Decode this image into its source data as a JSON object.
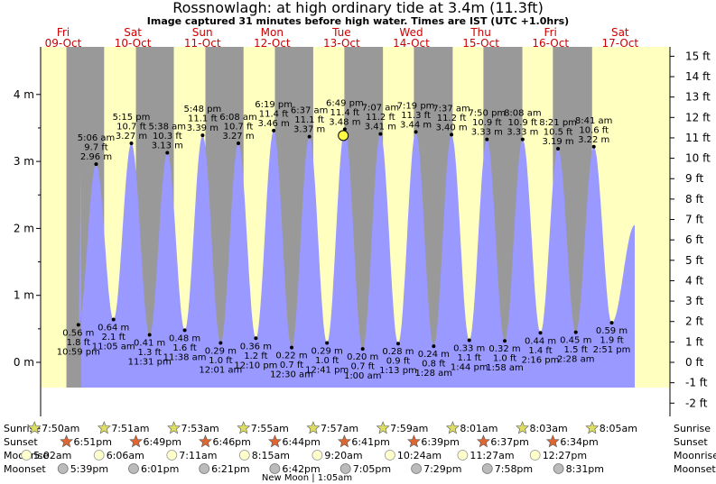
{
  "title": "Rossnowlagh: at high  ordinary tide at 3.4m (11.3ft)",
  "subtitle": "Image captured 31 minutes before high water. Times are IST (UTC +1.0hrs)",
  "days": [
    {
      "day": "Fri",
      "date": "09-Oct"
    },
    {
      "day": "Sat",
      "date": "10-Oct"
    },
    {
      "day": "Sun",
      "date": "11-Oct"
    },
    {
      "day": "Mon",
      "date": "12-Oct"
    },
    {
      "day": "Tue",
      "date": "13-Oct"
    },
    {
      "day": "Wed",
      "date": "14-Oct"
    },
    {
      "day": "Thu",
      "date": "15-Oct"
    },
    {
      "day": "Fri",
      "date": "16-Oct"
    },
    {
      "day": "Sat",
      "date": "17-Oct"
    }
  ],
  "row_labels": {
    "sunrise": "Sunrise",
    "sunset": "Sunset",
    "moonrise": "Moonrise",
    "moonset": "Moonset"
  },
  "sunrise": [
    "7:50am",
    "7:51am",
    "7:53am",
    "7:55am",
    "7:57am",
    "7:59am",
    "8:01am",
    "8:03am",
    "8:05am"
  ],
  "sunset": [
    "6:51pm",
    "6:49pm",
    "6:46pm",
    "6:44pm",
    "6:41pm",
    "6:39pm",
    "6:37pm",
    "6:34pm"
  ],
  "moonrise": [
    "5:02am",
    "6:06am",
    "7:11am",
    "8:15am",
    "9:20am",
    "10:24am",
    "11:27am",
    "12:27pm"
  ],
  "moonset": [
    "5:39pm",
    "6:01pm",
    "6:21pm",
    "6:42pm",
    "7:05pm",
    "7:29pm",
    "7:58pm",
    "8:31pm"
  ],
  "moon_phase_note": "New Moon | 1:05am",
  "colors": {
    "day": "#ffffc0",
    "night": "#999999",
    "tide": "#9999ff",
    "sunset_red": "#cc0000",
    "marker": "#ffff44"
  },
  "chart_data": {
    "type": "area",
    "title": "Rossnowlagh: at high  ordinary tide at 3.4m (11.3ft)",
    "x_unit": "time (IST)",
    "y_left": {
      "label": "m",
      "ticks": [
        "0 m",
        "1 m",
        "2 m",
        "3 m",
        "4 m"
      ],
      "range": [
        -0.45,
        4.6
      ]
    },
    "y_right": {
      "label": "ft",
      "ticks": [
        "-2 ft",
        "-1 ft",
        "0 ft",
        "1 ft",
        "2 ft",
        "3 ft",
        "4 ft",
        "5 ft",
        "6 ft",
        "7 ft",
        "8 ft",
        "9 ft",
        "10 ft",
        "11 ft",
        "12 ft",
        "13 ft",
        "14 ft",
        "15 ft"
      ]
    },
    "grid": false,
    "current_marker": {
      "time": "13-Oct 6:18pm",
      "height_m": 3.4
    },
    "tides": [
      {
        "type": "low",
        "date": "09-Oct",
        "time": "10:59pm",
        "m": 0.56,
        "ft": 1.8,
        "labels": [
          "0.56 m",
          "1.8 ft",
          "10:59 pm"
        ]
      },
      {
        "type": "high",
        "date": "10-Oct",
        "time": "5:06am",
        "m": 2.96,
        "ft": 9.7,
        "labels": [
          "5:06 am",
          "9.7 ft",
          "2.96 m"
        ]
      },
      {
        "type": "low",
        "date": "10-Oct",
        "time": "11:05am",
        "m": 0.64,
        "ft": 2.1,
        "labels": [
          "0.64 m",
          "2.1 ft",
          "11:05 am"
        ]
      },
      {
        "type": "high",
        "date": "10-Oct",
        "time": "5:15pm",
        "m": 3.27,
        "ft": 10.7,
        "labels": [
          "5:15 pm",
          "10.7 ft",
          "3.27 m"
        ]
      },
      {
        "type": "low",
        "date": "10-Oct",
        "time": "11:31pm",
        "m": 0.41,
        "ft": 1.3,
        "labels": [
          "0.41 m",
          "1.3 ft",
          "11:31 pm"
        ]
      },
      {
        "type": "high",
        "date": "11-Oct",
        "time": "5:38am",
        "m": 3.13,
        "ft": 10.3,
        "labels": [
          "5:38 am",
          "10.3 ft",
          "3.13 m"
        ]
      },
      {
        "type": "low",
        "date": "11-Oct",
        "time": "11:38am",
        "m": 0.48,
        "ft": 1.6,
        "labels": [
          "0.48 m",
          "1.6 ft",
          "11:38 am"
        ]
      },
      {
        "type": "high",
        "date": "11-Oct",
        "time": "5:48pm",
        "m": 3.39,
        "ft": 11.1,
        "labels": [
          "5:48 pm",
          "11.1 ft",
          "3.39 m"
        ]
      },
      {
        "type": "low",
        "date": "12-Oct",
        "time": "12:01am",
        "m": 0.29,
        "ft": 1.0,
        "labels": [
          "0.29 m",
          "1.0 ft",
          "12:01 am"
        ]
      },
      {
        "type": "high",
        "date": "12-Oct",
        "time": "6:08am",
        "m": 3.27,
        "ft": 10.7,
        "labels": [
          "6:08 am",
          "10.7 ft",
          "3.27 m"
        ]
      },
      {
        "type": "low",
        "date": "12-Oct",
        "time": "12:10pm",
        "m": 0.36,
        "ft": 1.2,
        "labels": [
          "0.36 m",
          "1.2 ft",
          "12:10 pm"
        ]
      },
      {
        "type": "high",
        "date": "12-Oct",
        "time": "6:19pm",
        "m": 3.46,
        "ft": 11.4,
        "labels": [
          "6:19 pm",
          "11.4 ft",
          "3.46 m"
        ]
      },
      {
        "type": "low",
        "date": "13-Oct",
        "time": "12:30am",
        "m": 0.22,
        "ft": 0.7,
        "labels": [
          "0.22 m",
          "0.7 ft",
          "12:30 am"
        ]
      },
      {
        "type": "high",
        "date": "13-Oct",
        "time": "6:37am",
        "m": 3.37,
        "ft": 11.1,
        "labels": [
          "6:37 am",
          "11.1 ft",
          "3.37 m"
        ]
      },
      {
        "type": "low",
        "date": "13-Oct",
        "time": "12:41pm",
        "m": 0.29,
        "ft": 1.0,
        "labels": [
          "0.29 m",
          "1.0 ft",
          "12:41 pm"
        ]
      },
      {
        "type": "high",
        "date": "13-Oct",
        "time": "6:49pm",
        "m": 3.48,
        "ft": 11.4,
        "labels": [
          "6:49 pm",
          "11.4 ft",
          "3.48 m"
        ]
      },
      {
        "type": "low",
        "date": "14-Oct",
        "time": "1:00am",
        "m": 0.2,
        "ft": 0.7,
        "labels": [
          "0.20 m",
          "0.7 ft",
          "1:00 am"
        ]
      },
      {
        "type": "high",
        "date": "14-Oct",
        "time": "7:07am",
        "m": 3.41,
        "ft": 11.2,
        "labels": [
          "7:07 am",
          "11.2 ft",
          "3.41 m"
        ]
      },
      {
        "type": "low",
        "date": "14-Oct",
        "time": "1:13pm",
        "m": 0.28,
        "ft": 0.9,
        "labels": [
          "0.28 m",
          "0.9 ft",
          "1:13 pm"
        ]
      },
      {
        "type": "high",
        "date": "14-Oct",
        "time": "7:19pm",
        "m": 3.44,
        "ft": 11.3,
        "labels": [
          "7:19 pm",
          "11.3 ft",
          "3.44 m"
        ]
      },
      {
        "type": "low",
        "date": "15-Oct",
        "time": "1:28am",
        "m": 0.24,
        "ft": 0.8,
        "labels": [
          "0.24 m",
          "0.8 ft",
          "1:28 am"
        ]
      },
      {
        "type": "high",
        "date": "15-Oct",
        "time": "7:37am",
        "m": 3.4,
        "ft": 11.2,
        "labels": [
          "7:37 am",
          "11.2 ft",
          "3.40 m"
        ]
      },
      {
        "type": "low",
        "date": "15-Oct",
        "time": "1:44pm",
        "m": 0.33,
        "ft": 1.1,
        "labels": [
          "0.33 m",
          "1.1 ft",
          "1:44 pm"
        ]
      },
      {
        "type": "high",
        "date": "15-Oct",
        "time": "7:50pm",
        "m": 3.33,
        "ft": 10.9,
        "labels": [
          "7:50 pm",
          "10.9 ft",
          "3.33 m"
        ]
      },
      {
        "type": "low",
        "date": "16-Oct",
        "time": "1:58am",
        "m": 0.32,
        "ft": 1.0,
        "labels": [
          "0.32 m",
          "1.0 ft",
          "1:58 am"
        ]
      },
      {
        "type": "high",
        "date": "16-Oct",
        "time": "8:08am",
        "m": 3.33,
        "ft": 10.9,
        "labels": [
          "8:08 am",
          "10.9 ft",
          "3.33 m"
        ]
      },
      {
        "type": "low",
        "date": "16-Oct",
        "time": "2:16pm",
        "m": 0.44,
        "ft": 1.4,
        "labels": [
          "0.44 m",
          "1.4 ft",
          "2:16 pm"
        ]
      },
      {
        "type": "high",
        "date": "16-Oct",
        "time": "8:21pm",
        "m": 3.19,
        "ft": 10.5,
        "labels": [
          "8:21 pm",
          "10.5 ft",
          "3.19 m"
        ]
      },
      {
        "type": "low",
        "date": "17-Oct",
        "time": "2:28am",
        "m": 0.45,
        "ft": 1.5,
        "labels": [
          "0.45 m",
          "1.5 ft",
          "2:28 am"
        ]
      },
      {
        "type": "high",
        "date": "17-Oct",
        "time": "8:41am",
        "m": 3.22,
        "ft": 10.6,
        "labels": [
          "8:41 am",
          "10.6 ft",
          "3.22 m"
        ]
      },
      {
        "type": "low",
        "date": "17-Oct",
        "time": "2:51pm",
        "m": 0.59,
        "ft": 1.9,
        "labels": [
          "0.59 m",
          "1.9 ft",
          "2:51 pm"
        ]
      }
    ]
  }
}
